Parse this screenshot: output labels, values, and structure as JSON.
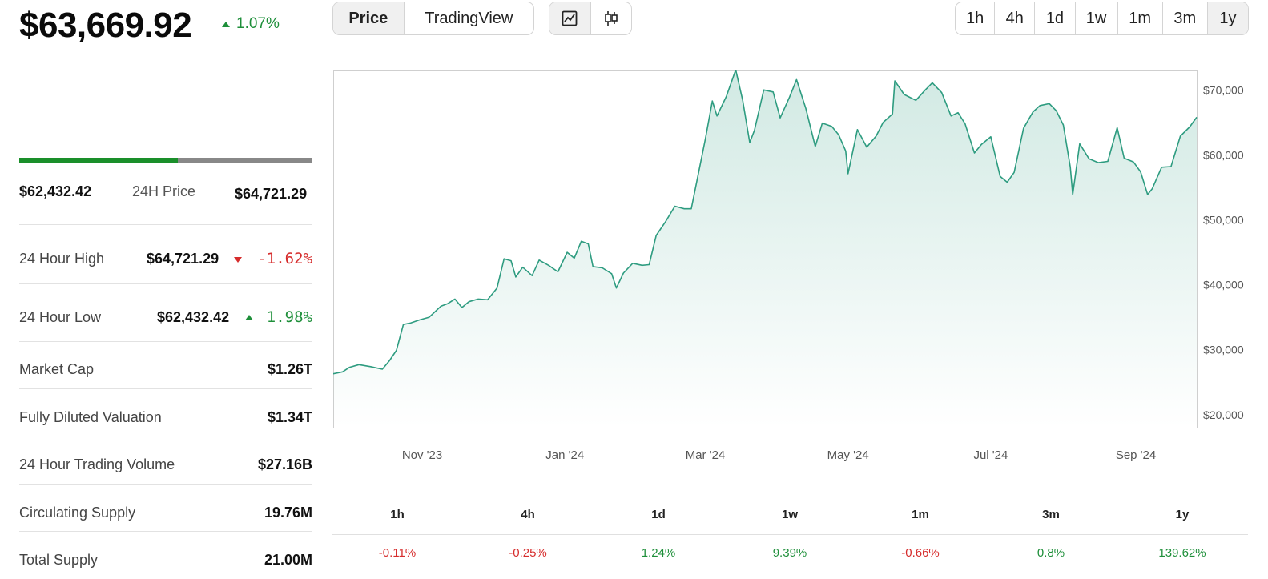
{
  "header": {
    "price": "$63,669.92",
    "change": "1.07%",
    "change_dir": "up"
  },
  "controls": {
    "source_tabs": [
      {
        "label": "Price",
        "active": true
      },
      {
        "label": "TradingView",
        "active": false
      }
    ],
    "chart_types": [
      {
        "icon": "line-chart-icon",
        "active": true
      },
      {
        "icon": "candlestick-icon",
        "active": false
      }
    ],
    "ranges": [
      {
        "label": "1h",
        "active": false
      },
      {
        "label": "4h",
        "active": false
      },
      {
        "label": "1d",
        "active": false
      },
      {
        "label": "1w",
        "active": false
      },
      {
        "label": "1m",
        "active": false
      },
      {
        "label": "3m",
        "active": false
      },
      {
        "label": "1y",
        "active": true
      }
    ]
  },
  "price_range": {
    "low": "$62,432.42",
    "label": "24H Price",
    "high": "$64,721.29",
    "position_fraction": 0.54
  },
  "stats": {
    "high": {
      "label": "24 Hour High",
      "value": "$64,721.29",
      "change": "-1.62%",
      "dir": "down"
    },
    "low": {
      "label": "24 Hour Low",
      "value": "$62,432.42",
      "change": "1.98%",
      "dir": "up"
    },
    "rows": [
      {
        "label": "Market Cap",
        "value": "$1.26T"
      },
      {
        "label": "Fully Diluted Valuation",
        "value": "$1.34T"
      },
      {
        "label": "24 Hour Trading Volume",
        "value": "$27.16B"
      },
      {
        "label": "Circulating Supply",
        "value": "19.76M"
      },
      {
        "label": "Total Supply",
        "value": "21.00M"
      }
    ]
  },
  "chart_data": {
    "type": "area",
    "ylim": [
      18000,
      73000
    ],
    "y_ticks": [
      {
        "value": 20000,
        "label": "$20,000"
      },
      {
        "value": 30000,
        "label": "$30,000"
      },
      {
        "value": 40000,
        "label": "$40,000"
      },
      {
        "value": 50000,
        "label": "$50,000"
      },
      {
        "value": 60000,
        "label": "$60,000"
      },
      {
        "value": 70000,
        "label": "$70,000"
      }
    ],
    "x_ticks": [
      {
        "date": "2023-11-01",
        "label": "Nov '23"
      },
      {
        "date": "2024-01-01",
        "label": "Jan '24"
      },
      {
        "date": "2024-03-01",
        "label": "Mar '24"
      },
      {
        "date": "2024-05-01",
        "label": "May '24"
      },
      {
        "date": "2024-07-01",
        "label": "Jul '24"
      },
      {
        "date": "2024-09-01",
        "label": "Sep '24"
      }
    ],
    "xlim": [
      "2023-09-24",
      "2024-09-27"
    ],
    "line_color": "#2e9c80",
    "series": [
      {
        "points": [
          [
            "2023-09-24",
            26300
          ],
          [
            "2023-09-28",
            26600
          ],
          [
            "2023-10-01",
            27300
          ],
          [
            "2023-10-05",
            27700
          ],
          [
            "2023-10-10",
            27400
          ],
          [
            "2023-10-15",
            27000
          ],
          [
            "2023-10-18",
            28300
          ],
          [
            "2023-10-21",
            29900
          ],
          [
            "2023-10-24",
            33900
          ],
          [
            "2023-10-27",
            34100
          ],
          [
            "2023-10-31",
            34600
          ],
          [
            "2023-11-04",
            35000
          ],
          [
            "2023-11-09",
            36700
          ],
          [
            "2023-11-12",
            37100
          ],
          [
            "2023-11-15",
            37800
          ],
          [
            "2023-11-18",
            36500
          ],
          [
            "2023-11-21",
            37400
          ],
          [
            "2023-11-25",
            37800
          ],
          [
            "2023-11-29",
            37700
          ],
          [
            "2023-12-03",
            39500
          ],
          [
            "2023-12-06",
            44000
          ],
          [
            "2023-12-09",
            43700
          ],
          [
            "2023-12-11",
            41200
          ],
          [
            "2023-12-14",
            42700
          ],
          [
            "2023-12-18",
            41400
          ],
          [
            "2023-12-21",
            43800
          ],
          [
            "2023-12-25",
            43000
          ],
          [
            "2023-12-29",
            42000
          ],
          [
            "2024-01-02",
            45000
          ],
          [
            "2024-01-05",
            44100
          ],
          [
            "2024-01-08",
            46700
          ],
          [
            "2024-01-11",
            46300
          ],
          [
            "2024-01-13",
            42800
          ],
          [
            "2024-01-17",
            42600
          ],
          [
            "2024-01-21",
            41700
          ],
          [
            "2024-01-23",
            39500
          ],
          [
            "2024-01-26",
            41800
          ],
          [
            "2024-01-30",
            43300
          ],
          [
            "2024-02-03",
            43000
          ],
          [
            "2024-02-06",
            43100
          ],
          [
            "2024-02-09",
            47600
          ],
          [
            "2024-02-13",
            49700
          ],
          [
            "2024-02-17",
            52100
          ],
          [
            "2024-02-21",
            51700
          ],
          [
            "2024-02-24",
            51700
          ],
          [
            "2024-02-27",
            57000
          ],
          [
            "2024-03-01",
            62400
          ],
          [
            "2024-03-04",
            68300
          ],
          [
            "2024-03-06",
            66000
          ],
          [
            "2024-03-10",
            69000
          ],
          [
            "2024-03-14",
            73100
          ],
          [
            "2024-03-17",
            68400
          ],
          [
            "2024-03-20",
            61900
          ],
          [
            "2024-03-22",
            63800
          ],
          [
            "2024-03-26",
            70000
          ],
          [
            "2024-03-30",
            69700
          ],
          [
            "2024-04-02",
            65700
          ],
          [
            "2024-04-06",
            68900
          ],
          [
            "2024-04-09",
            71600
          ],
          [
            "2024-04-13",
            67100
          ],
          [
            "2024-04-17",
            61300
          ],
          [
            "2024-04-20",
            64900
          ],
          [
            "2024-04-24",
            64400
          ],
          [
            "2024-04-27",
            63100
          ],
          [
            "2024-04-30",
            60600
          ],
          [
            "2024-05-01",
            57100
          ],
          [
            "2024-05-05",
            63900
          ],
          [
            "2024-05-09",
            61200
          ],
          [
            "2024-05-13",
            62900
          ],
          [
            "2024-05-16",
            65000
          ],
          [
            "2024-05-20",
            66300
          ],
          [
            "2024-05-21",
            71400
          ],
          [
            "2024-05-25",
            69300
          ],
          [
            "2024-05-30",
            68400
          ],
          [
            "2024-06-03",
            70000
          ],
          [
            "2024-06-06",
            71100
          ],
          [
            "2024-06-10",
            69600
          ],
          [
            "2024-06-14",
            66000
          ],
          [
            "2024-06-17",
            66500
          ],
          [
            "2024-06-20",
            64800
          ],
          [
            "2024-06-24",
            60300
          ],
          [
            "2024-06-27",
            61600
          ],
          [
            "2024-07-01",
            62800
          ],
          [
            "2024-07-05",
            56700
          ],
          [
            "2024-07-08",
            55800
          ],
          [
            "2024-07-11",
            57300
          ],
          [
            "2024-07-15",
            64100
          ],
          [
            "2024-07-19",
            66600
          ],
          [
            "2024-07-22",
            67600
          ],
          [
            "2024-07-26",
            67900
          ],
          [
            "2024-07-29",
            66800
          ],
          [
            "2024-08-01",
            64600
          ],
          [
            "2024-08-04",
            58100
          ],
          [
            "2024-08-05",
            53900
          ],
          [
            "2024-08-08",
            61700
          ],
          [
            "2024-08-12",
            59400
          ],
          [
            "2024-08-16",
            58800
          ],
          [
            "2024-08-20",
            59000
          ],
          [
            "2024-08-24",
            64200
          ],
          [
            "2024-08-27",
            59500
          ],
          [
            "2024-08-31",
            58900
          ],
          [
            "2024-09-03",
            57400
          ],
          [
            "2024-09-06",
            53900
          ],
          [
            "2024-09-08",
            54800
          ],
          [
            "2024-09-12",
            58100
          ],
          [
            "2024-09-16",
            58200
          ],
          [
            "2024-09-20",
            62900
          ],
          [
            "2024-09-24",
            64300
          ],
          [
            "2024-09-27",
            65800
          ]
        ]
      }
    ]
  },
  "performance": [
    {
      "period": "1h",
      "value": "-0.11%",
      "dir": "down"
    },
    {
      "period": "4h",
      "value": "-0.25%",
      "dir": "down"
    },
    {
      "period": "1d",
      "value": "1.24%",
      "dir": "up"
    },
    {
      "period": "1w",
      "value": "9.39%",
      "dir": "up"
    },
    {
      "period": "1m",
      "value": "-0.66%",
      "dir": "down"
    },
    {
      "period": "3m",
      "value": "0.8%",
      "dir": "up"
    },
    {
      "period": "1y",
      "value": "139.62%",
      "dir": "up"
    }
  ],
  "colors": {
    "up": "#1e8f3a",
    "down": "#d62c2c"
  }
}
